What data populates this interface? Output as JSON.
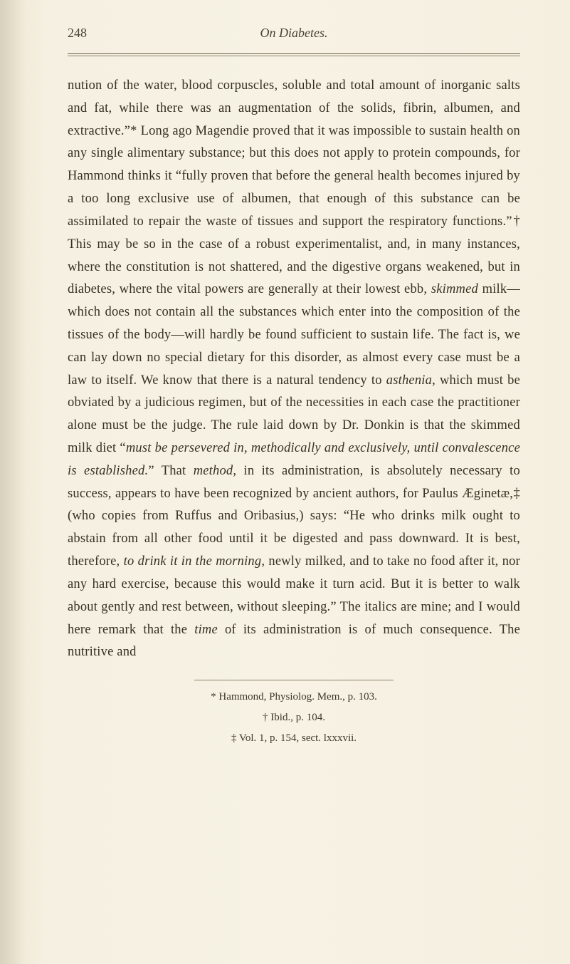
{
  "page_number": "248",
  "running_title": "On Diabetes.",
  "body_html": "nution of the water, blood corpuscles, soluble and total amount of inorganic salts and fat, while there was an augmentation of the solids, fibrin, albumen, and extractive.”* Long ago Magendie proved that it was impossible to sustain health on any single alimentary substance; but this does not apply to protein compounds, for Hammond thinks it “fully proven that before the general health becomes injured by a too long exclusive use of albumen, that enough of this substance can be assimilated to repair the waste of tissues and support the respiratory functions.”† This may be so in the case of a robust experimentalist, and, in many instances, where the constitution is not shattered, and the digestive organs weakened, but in diabetes, where the vital powers are generally at their lowest ebb, <em>skimmed</em> milk—which does not contain all the substances which enter into the composition of the tissues of the body—will hardly be found sufficient to sustain life. The fact is, we can lay down no special dietary for this disorder, as almost every case must be a law to itself. We know that there is a natural tendency to <em>asthenia</em>, which must be obviated by a judicious regimen, but of the necessities in each case the practitioner alone must be the judge. The rule laid down by Dr. Donkin is that the skimmed milk diet “<em>must be persevered in, methodically and exclusively, until convalescence is established.</em>” That <em>method</em>, in its administration, is absolutely necessary to success, appears to have been recognized by ancient authors, for Paulus Æginetæ,‡ (who copies from Ruffus and Oribasius,) says: “He who drinks milk ought to abstain from all other food until it be digested and pass downward. It is best, therefore, <em>to drink it in the morning</em>, newly milked, and to take no food after it, nor any hard exercise, because this would make it turn acid. But it is better to walk about gently and rest between, without sleeping.” The italics are mine; and I would here remark that the <em>time</em> of its administration is of much consequence. The nutritive and",
  "footnotes": [
    "* Hammond, Physiolog. Mem., p. 103.",
    "† Ibid., p. 104.",
    "‡ Vol. 1, p. 154, sect. lxxxvii."
  ],
  "colors": {
    "background": "#f5f0e1",
    "text": "#35301f",
    "rule": "#6b6450"
  },
  "typography": {
    "body_fontsize_pt": 14,
    "body_lineheight": 1.72,
    "footnote_fontsize_pt": 11,
    "font_family": "Georgia, serif"
  }
}
